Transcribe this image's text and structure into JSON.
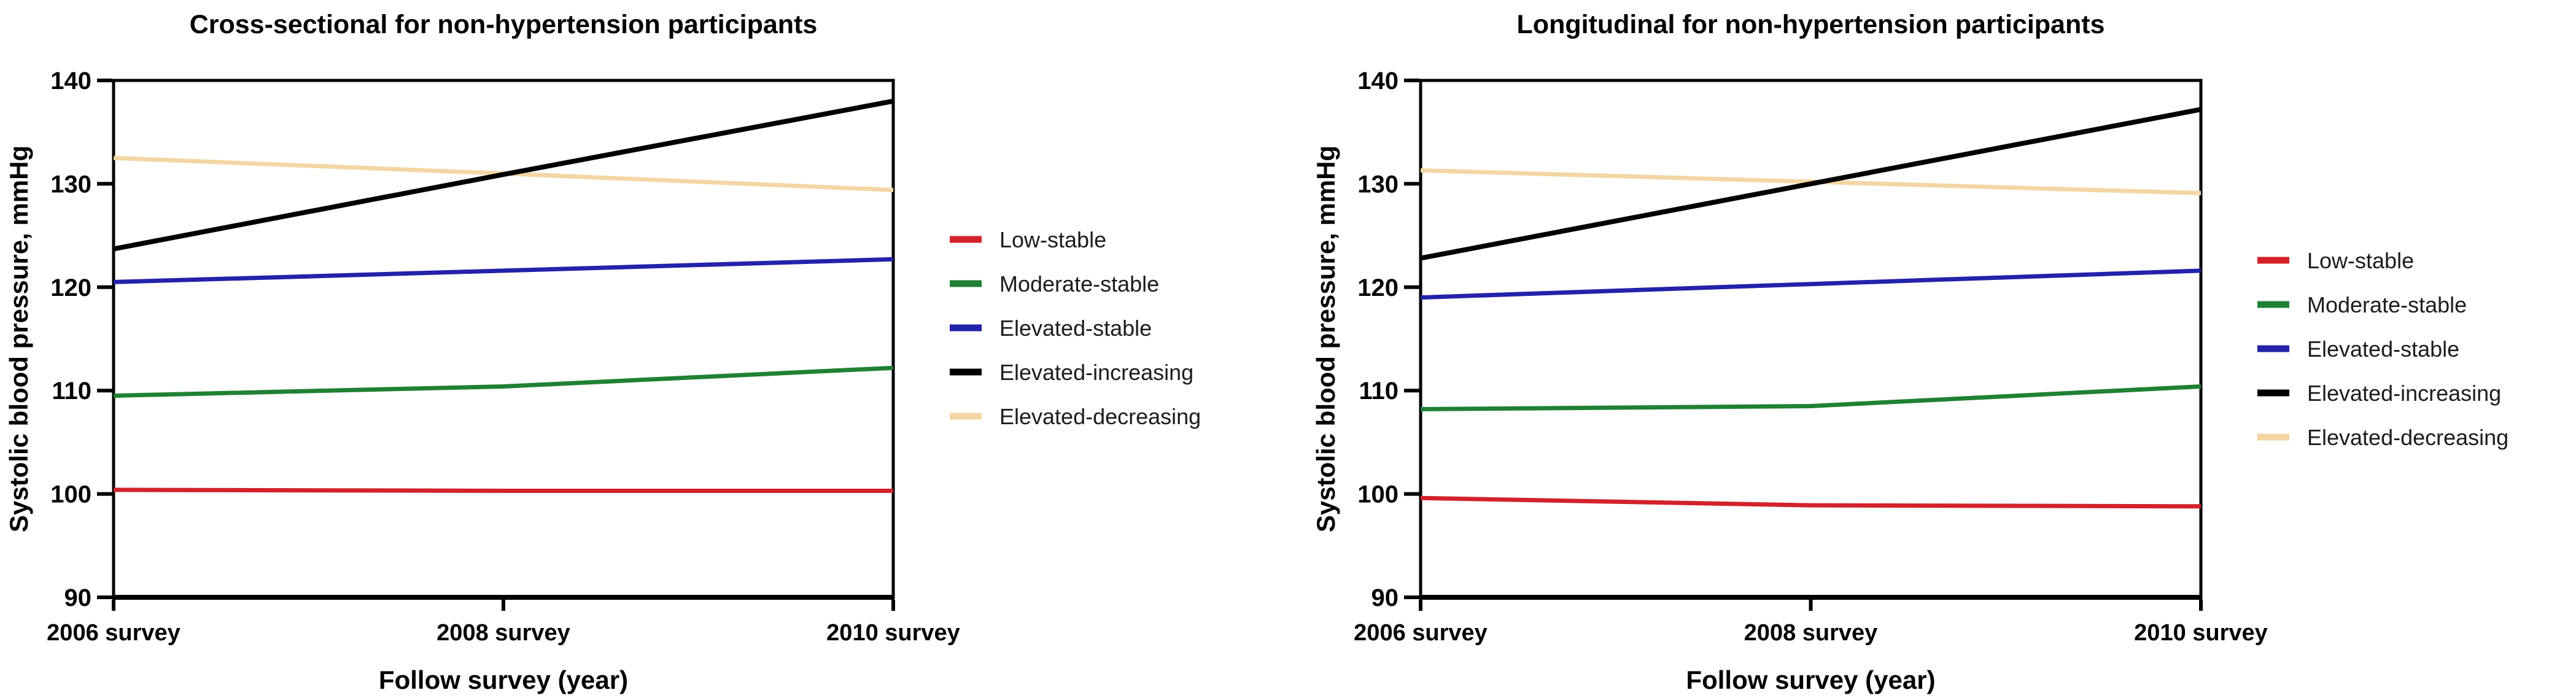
{
  "figure_background": "#ffffff",
  "chart_data": [
    {
      "type": "line",
      "title": "Cross-sectional for non-hypertension participants",
      "xlabel": "Follow survey (year)",
      "ylabel": "Systolic blood pressure, mmHg",
      "categories": [
        "2006 survey",
        "2008 survey",
        "2010 survey"
      ],
      "y_ticks": [
        90,
        100,
        110,
        120,
        130,
        140
      ],
      "ylim": [
        90,
        140
      ],
      "grid": false,
      "legend_position": "right",
      "frame_color": "#000000",
      "series": [
        {
          "name": "Low-stable",
          "color": "#d3222a",
          "values": [
            100.4,
            100.3,
            100.3
          ]
        },
        {
          "name": "Moderate-stable",
          "color": "#208033",
          "values": [
            109.5,
            110.4,
            112.2
          ]
        },
        {
          "name": "Elevated-stable",
          "color": "#2222aa",
          "values": [
            120.5,
            121.6,
            122.7
          ]
        },
        {
          "name": "Elevated-increasing",
          "color": "#000000",
          "values": [
            123.7,
            130.9,
            138.0
          ]
        },
        {
          "name": "Elevated-decreasing",
          "color": "#f3d6a4",
          "values": [
            132.5,
            131.0,
            129.4
          ]
        }
      ]
    },
    {
      "type": "line",
      "title": "Longitudinal for non-hypertension participants",
      "xlabel": "Follow survey (year)",
      "ylabel": "Systolic blood pressure, mmHg",
      "categories": [
        "2006 survey",
        "2008 survey",
        "2010 survey"
      ],
      "y_ticks": [
        90,
        100,
        110,
        120,
        130,
        140
      ],
      "ylim": [
        90,
        140
      ],
      "grid": false,
      "legend_position": "right",
      "frame_color": "#000000",
      "series": [
        {
          "name": "Low-stable",
          "color": "#d3222a",
          "values": [
            99.6,
            98.9,
            98.8
          ]
        },
        {
          "name": "Moderate-stable",
          "color": "#208033",
          "values": [
            108.2,
            108.5,
            110.4
          ]
        },
        {
          "name": "Elevated-stable",
          "color": "#2222aa",
          "values": [
            119.0,
            120.3,
            121.6
          ]
        },
        {
          "name": "Elevated-increasing",
          "color": "#000000",
          "values": [
            122.8,
            130.0,
            137.2
          ]
        },
        {
          "name": "Elevated-decreasing",
          "color": "#f3d6a4",
          "values": [
            131.3,
            130.2,
            129.1
          ]
        }
      ]
    }
  ]
}
